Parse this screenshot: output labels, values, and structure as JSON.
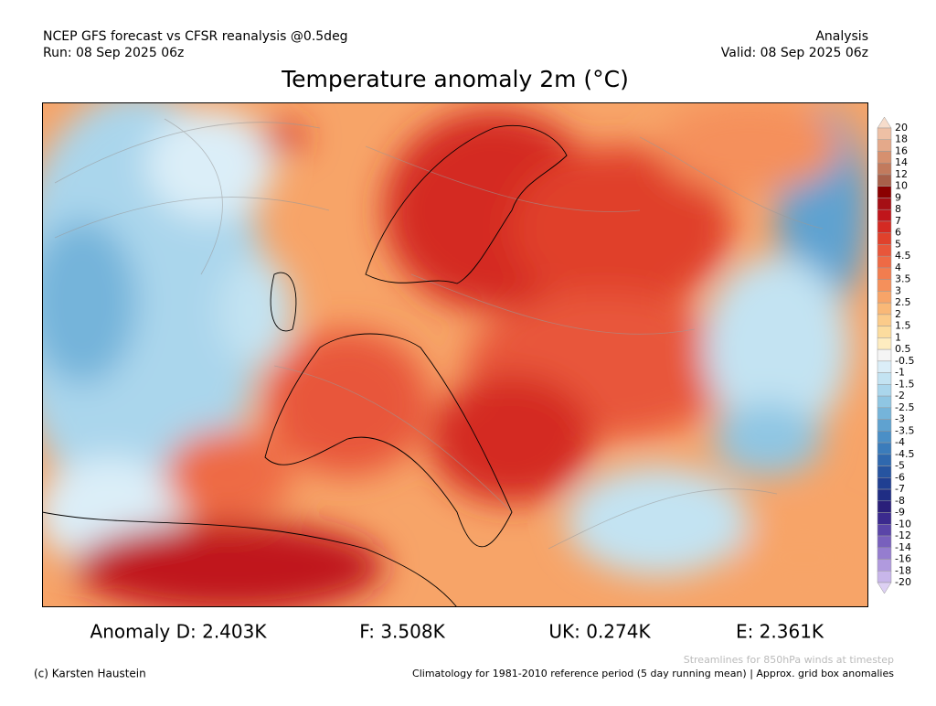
{
  "header": {
    "left": [
      "NCEP GFS forecast vs CFSR reanalysis @0.5deg",
      "Run: 08 Sep 2025 06z"
    ],
    "right": [
      "Analysis",
      "Valid: 08 Sep 2025 06z"
    ]
  },
  "title": "Temperature anomaly 2m (°C)",
  "colorbar": {
    "labels": [
      "20",
      "18",
      "16",
      "14",
      "12",
      "10",
      "9",
      "8",
      "7",
      "6",
      "5",
      "4.5",
      "4",
      "3.5",
      "3",
      "2.5",
      "2",
      "1.5",
      "1",
      "0.5",
      "-0.5",
      "-1",
      "-1.5",
      "-2",
      "-2.5",
      "-3",
      "-3.5",
      "-4",
      "-4.5",
      "-5",
      "-6",
      "-7",
      "-8",
      "-9",
      "-10",
      "-12",
      "-14",
      "-16",
      "-18",
      "-20"
    ],
    "colors": [
      "#f6dccb",
      "#eec0a5",
      "#e4a98a",
      "#d6906f",
      "#c27a5d",
      "#a8604a",
      "#8b0000",
      "#a50f15",
      "#c0151b",
      "#d42a23",
      "#e0412c",
      "#e8563a",
      "#ee6a45",
      "#f27d4f",
      "#f5905b",
      "#f7a468",
      "#f9b877",
      "#fbcb8a",
      "#fcdc9e",
      "#feecc0",
      "#f5f5f5",
      "#dbeef8",
      "#c3e3f2",
      "#aad6ec",
      "#8fc6e3",
      "#75b4da",
      "#5fa2d0",
      "#4b8fc6",
      "#3b7cbb",
      "#2f68ae",
      "#2654a0",
      "#203f92",
      "#1f2d84",
      "#2a1f7a",
      "#3b2a8e",
      "#5a45a8",
      "#7860bd",
      "#957dcf",
      "#b09ade",
      "#c8b6ea",
      "#ddd0f3"
    ]
  },
  "stats": [
    "Anomaly D: 2.403K",
    "F: 3.508K",
    "UK: 0.274K",
    "E: 2.361K"
  ],
  "footer": {
    "credit": "(c) Karsten Haustein",
    "streamlines": "Streamlines for 850hPa winds at timestep",
    "climatology": "Climatology for 1981-2010 reference period (5 day running mean) | Approx. grid box anomalies"
  }
}
